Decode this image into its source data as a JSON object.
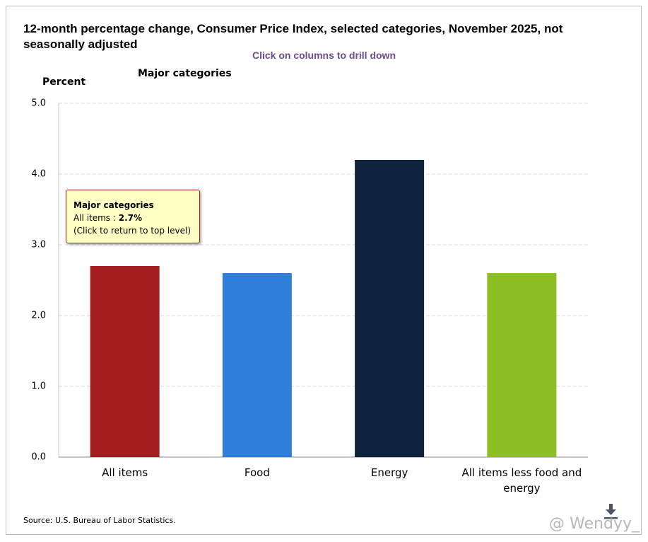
{
  "chart_data": {
    "type": "bar",
    "title": "12-month percentage change, Consumer Price Index, selected categories, November 2025, not seasonally adjusted",
    "subtitle": "Click on columns to drill down",
    "heading": "Major categories",
    "y_label": "Percent",
    "categories": [
      "All items",
      "Food",
      "Energy",
      "All items less food and energy"
    ],
    "values": [
      2.7,
      2.6,
      4.2,
      2.6
    ],
    "colors": [
      "#a51c1e",
      "#2f7fd8",
      "#10233c",
      "#8cbf24"
    ],
    "ylim": [
      0,
      5
    ],
    "yticks": [
      {
        "value": 0,
        "label": "0.0"
      },
      {
        "value": 1,
        "label": "1.0"
      },
      {
        "value": 2,
        "label": "2.0"
      },
      {
        "value": 3,
        "label": "3.0"
      },
      {
        "value": 4,
        "label": "4.0"
      },
      {
        "value": 5,
        "label": "5.0"
      }
    ],
    "grid": true,
    "tooltip": {
      "heading": "Major categories",
      "line": "All items :",
      "value": "2.7%",
      "note": "(Click to return to top level)"
    },
    "source": "Source: U.S. Bureau of Labor Statistics.",
    "watermark": "@ Wendyy_"
  }
}
